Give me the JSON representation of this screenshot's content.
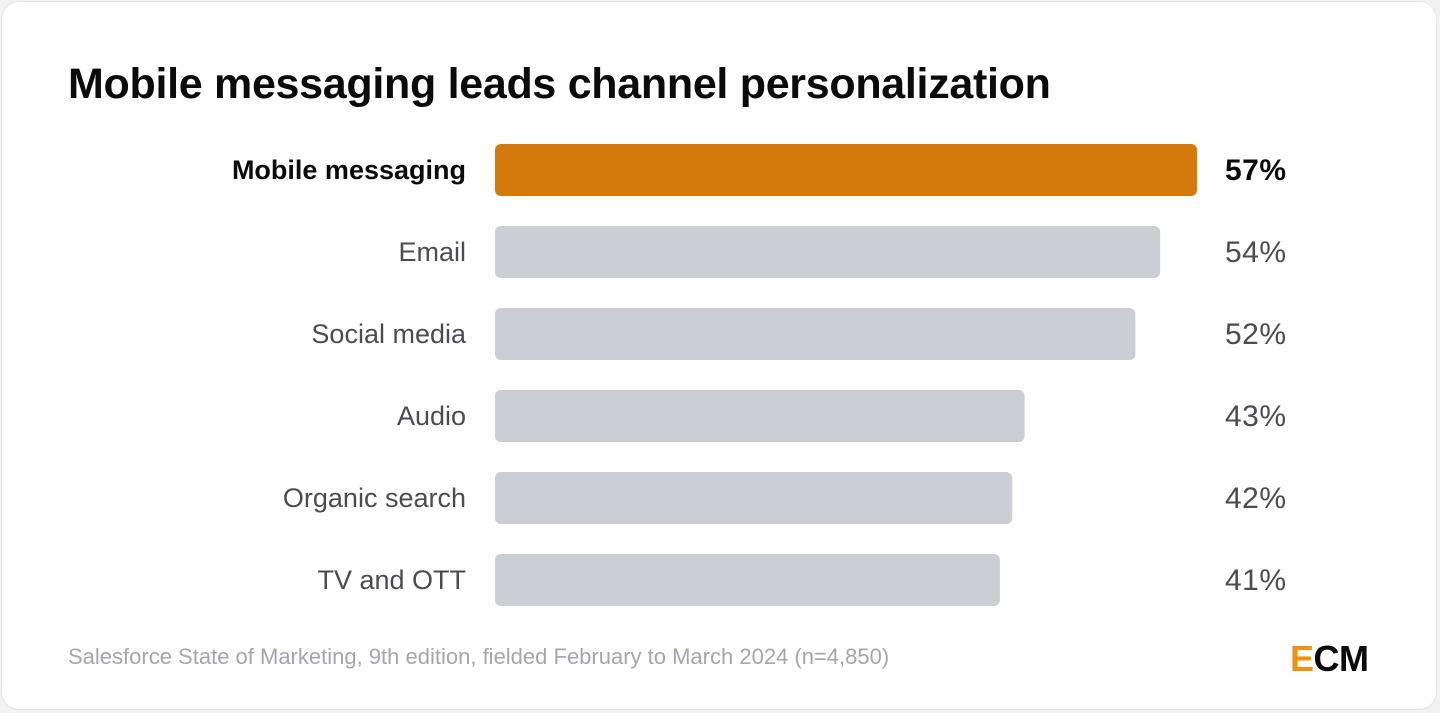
{
  "chart_data": {
    "type": "bar",
    "orientation": "horizontal",
    "title": "Mobile messaging leads channel personalization",
    "categories": [
      "Mobile messaging",
      "Email",
      "Social media",
      "Audio",
      "Organic search",
      "TV and OTT"
    ],
    "values": [
      57,
      54,
      52,
      43,
      42,
      41
    ],
    "value_labels": [
      "57%",
      "54%",
      "52%",
      "43%",
      "42%",
      "41%"
    ],
    "highlight_index": 0,
    "xlim": [
      0,
      57
    ],
    "grid": false,
    "legend": "none",
    "colors": {
      "highlight": "#d4790b",
      "default": "#cbced5"
    },
    "source": "Salesforce State of Marketing, 9th edition, fielded February to March 2024 (n=4,850)"
  },
  "brand": {
    "logo_e": "E",
    "logo_cm": "CM",
    "logo_e_color": "#f2920c"
  }
}
